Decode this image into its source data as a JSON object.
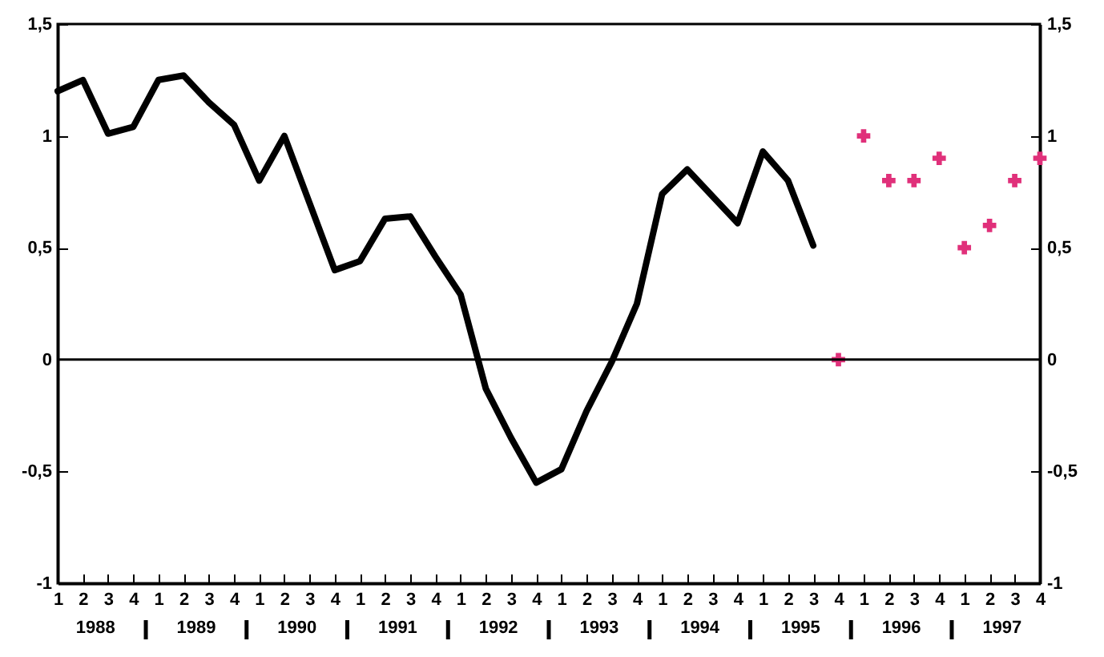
{
  "chart_data": {
    "type": "line",
    "categories": [
      "1",
      "2",
      "3",
      "4",
      "1",
      "2",
      "3",
      "4",
      "1",
      "2",
      "3",
      "4",
      "1",
      "2",
      "3",
      "4",
      "1",
      "2",
      "3",
      "4",
      "1",
      "2",
      "3",
      "4",
      "1",
      "2",
      "3",
      "4",
      "1",
      "2",
      "3",
      "4",
      "1",
      "2",
      "3",
      "4",
      "1",
      "2",
      "3",
      "4"
    ],
    "series": [
      {
        "type": "line",
        "color": "#000000",
        "values": [
          1.2,
          1.25,
          1.01,
          1.04,
          1.25,
          1.27,
          1.15,
          1.05,
          0.8,
          1.0,
          0.7,
          0.4,
          0.44,
          0.63,
          0.64,
          0.46,
          0.29,
          -0.13,
          -0.35,
          -0.55,
          -0.49,
          -0.23,
          -0.01,
          0.25,
          0.74,
          0.85,
          0.73,
          0.61,
          0.93,
          0.8,
          0.51,
          null,
          null,
          null,
          null,
          null,
          null,
          null,
          null,
          null
        ]
      },
      {
        "type": "scatter",
        "color": "#e0307a",
        "marker": "cross",
        "values": [
          null,
          null,
          null,
          null,
          null,
          null,
          null,
          null,
          null,
          null,
          null,
          null,
          null,
          null,
          null,
          null,
          null,
          null,
          null,
          null,
          null,
          null,
          null,
          null,
          null,
          null,
          null,
          null,
          null,
          null,
          null,
          0,
          1.0,
          0.8,
          0.8,
          0.9,
          0.5,
          0.6,
          0.8,
          0.9
        ]
      }
    ],
    "ylim": [
      -1,
      1.5
    ],
    "yticks": [
      {
        "value": -1,
        "label": "-1"
      },
      {
        "value": -0.5,
        "label": "-0,5"
      },
      0,
      {
        "value": 0.5,
        "label": "0,5"
      },
      1,
      {
        "value": 1.5,
        "label": "1,5"
      }
    ],
    "y2lim": [
      -1,
      1.5
    ],
    "y2ticks": [
      {
        "value": -1,
        "label": "-1"
      },
      {
        "value": -0.5,
        "label": "-0,5"
      },
      0,
      {
        "value": 0.5,
        "label": "0,5"
      },
      1,
      {
        "value": 1.5,
        "label": "1,5"
      }
    ],
    "ref_lines": [
      {
        "axis": "y",
        "value": 0,
        "color": "#000000"
      }
    ],
    "annotations": [
      "1988",
      "1989",
      "1990",
      "1991",
      "1992",
      "1993",
      "1994",
      "1995",
      "1996",
      "1997"
    ],
    "grid": false
  }
}
